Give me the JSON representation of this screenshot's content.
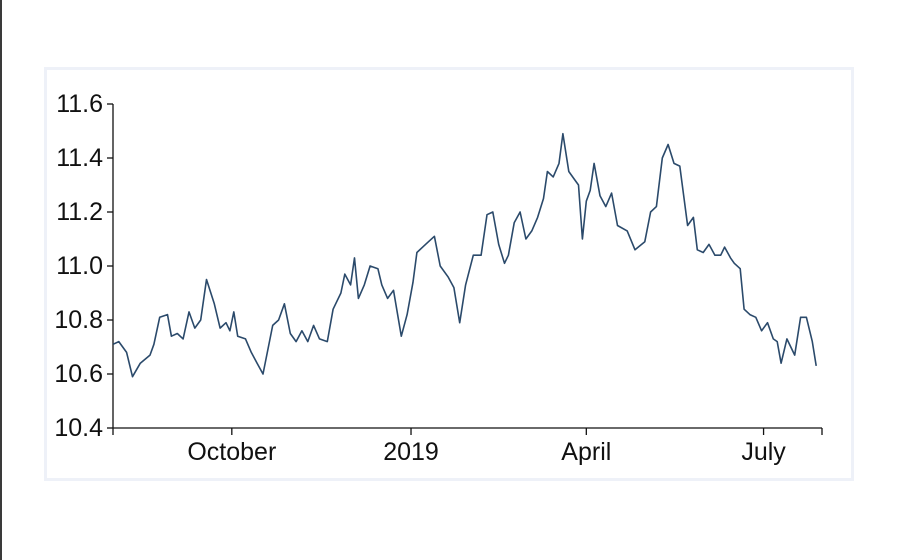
{
  "chart_data": {
    "type": "line",
    "title": "",
    "xlabel": "",
    "ylabel": "",
    "grid": false,
    "legend": "none",
    "x_axis": {
      "kind": "date",
      "range": [
        "2018-08-01",
        "2019-07-31"
      ],
      "ticks": [
        {
          "date": "2018-10-01",
          "label": "October"
        },
        {
          "date": "2019-01-01",
          "label": "2019"
        },
        {
          "date": "2019-04-01",
          "label": "April"
        },
        {
          "date": "2019-07-01",
          "label": "July"
        }
      ]
    },
    "y_axis": {
      "range": [
        10.4,
        11.6
      ],
      "ticks": [
        {
          "value": 10.4,
          "label": "10.4"
        },
        {
          "value": 10.6,
          "label": "10.6"
        },
        {
          "value": 10.8,
          "label": "10.8"
        },
        {
          "value": 11.0,
          "label": "11.0"
        },
        {
          "value": 11.2,
          "label": "11.2"
        },
        {
          "value": 11.4,
          "label": "11.4"
        },
        {
          "value": 11.6,
          "label": "11.6"
        }
      ]
    },
    "series": [
      {
        "color": "#2b4a6b",
        "points": [
          [
            "2018-08-01",
            10.71
          ],
          [
            "2018-08-04",
            10.72
          ],
          [
            "2018-08-08",
            10.68
          ],
          [
            "2018-08-11",
            10.59
          ],
          [
            "2018-08-15",
            10.64
          ],
          [
            "2018-08-20",
            10.67
          ],
          [
            "2018-08-22",
            10.71
          ],
          [
            "2018-08-25",
            10.81
          ],
          [
            "2018-08-29",
            10.82
          ],
          [
            "2018-08-31",
            10.74
          ],
          [
            "2018-09-03",
            10.75
          ],
          [
            "2018-09-06",
            10.73
          ],
          [
            "2018-09-09",
            10.83
          ],
          [
            "2018-09-12",
            10.77
          ],
          [
            "2018-09-15",
            10.8
          ],
          [
            "2018-09-18",
            10.95
          ],
          [
            "2018-09-22",
            10.86
          ],
          [
            "2018-09-25",
            10.77
          ],
          [
            "2018-09-28",
            10.79
          ],
          [
            "2018-09-30",
            10.76
          ],
          [
            "2018-10-02",
            10.83
          ],
          [
            "2018-10-04",
            10.74
          ],
          [
            "2018-10-08",
            10.73
          ],
          [
            "2018-10-11",
            10.68
          ],
          [
            "2018-10-14",
            10.64
          ],
          [
            "2018-10-17",
            10.6
          ],
          [
            "2018-10-22",
            10.78
          ],
          [
            "2018-10-25",
            10.8
          ],
          [
            "2018-10-28",
            10.86
          ],
          [
            "2018-10-31",
            10.75
          ],
          [
            "2018-11-03",
            10.72
          ],
          [
            "2018-11-06",
            10.76
          ],
          [
            "2018-11-09",
            10.72
          ],
          [
            "2018-11-12",
            10.78
          ],
          [
            "2018-11-15",
            10.73
          ],
          [
            "2018-11-19",
            10.72
          ],
          [
            "2018-11-22",
            10.84
          ],
          [
            "2018-11-26",
            10.9
          ],
          [
            "2018-11-28",
            10.97
          ],
          [
            "2018-12-01",
            10.93
          ],
          [
            "2018-12-03",
            11.03
          ],
          [
            "2018-12-05",
            10.88
          ],
          [
            "2018-12-08",
            10.93
          ],
          [
            "2018-12-11",
            11.0
          ],
          [
            "2018-12-15",
            10.99
          ],
          [
            "2018-12-17",
            10.93
          ],
          [
            "2018-12-20",
            10.88
          ],
          [
            "2018-12-23",
            10.91
          ],
          [
            "2018-12-27",
            10.74
          ],
          [
            "2018-12-30",
            10.82
          ],
          [
            "2019-01-02",
            10.94
          ],
          [
            "2019-01-04",
            11.05
          ],
          [
            "2019-01-07",
            11.07
          ],
          [
            "2019-01-10",
            11.09
          ],
          [
            "2019-01-13",
            11.11
          ],
          [
            "2019-01-16",
            11.0
          ],
          [
            "2019-01-20",
            10.96
          ],
          [
            "2019-01-23",
            10.92
          ],
          [
            "2019-01-26",
            10.79
          ],
          [
            "2019-01-29",
            10.93
          ],
          [
            "2019-02-02",
            11.04
          ],
          [
            "2019-02-06",
            11.04
          ],
          [
            "2019-02-09",
            11.19
          ],
          [
            "2019-02-12",
            11.2
          ],
          [
            "2019-02-15",
            11.08
          ],
          [
            "2019-02-18",
            11.01
          ],
          [
            "2019-02-20",
            11.04
          ],
          [
            "2019-02-23",
            11.16
          ],
          [
            "2019-02-26",
            11.2
          ],
          [
            "2019-03-01",
            11.1
          ],
          [
            "2019-03-04",
            11.13
          ],
          [
            "2019-03-07",
            11.18
          ],
          [
            "2019-03-10",
            11.25
          ],
          [
            "2019-03-12",
            11.35
          ],
          [
            "2019-03-15",
            11.33
          ],
          [
            "2019-03-18",
            11.38
          ],
          [
            "2019-03-20",
            11.49
          ],
          [
            "2019-03-23",
            11.35
          ],
          [
            "2019-03-26",
            11.32
          ],
          [
            "2019-03-28",
            11.3
          ],
          [
            "2019-03-30",
            11.1
          ],
          [
            "2019-04-01",
            11.24
          ],
          [
            "2019-04-03",
            11.28
          ],
          [
            "2019-04-05",
            11.38
          ],
          [
            "2019-04-08",
            11.26
          ],
          [
            "2019-04-11",
            11.22
          ],
          [
            "2019-04-14",
            11.27
          ],
          [
            "2019-04-17",
            11.15
          ],
          [
            "2019-04-22",
            11.13
          ],
          [
            "2019-04-26",
            11.06
          ],
          [
            "2019-05-01",
            11.09
          ],
          [
            "2019-05-04",
            11.2
          ],
          [
            "2019-05-07",
            11.22
          ],
          [
            "2019-05-10",
            11.4
          ],
          [
            "2019-05-13",
            11.45
          ],
          [
            "2019-05-16",
            11.38
          ],
          [
            "2019-05-19",
            11.37
          ],
          [
            "2019-05-21",
            11.26
          ],
          [
            "2019-05-23",
            11.15
          ],
          [
            "2019-05-26",
            11.18
          ],
          [
            "2019-05-28",
            11.06
          ],
          [
            "2019-05-31",
            11.05
          ],
          [
            "2019-06-03",
            11.08
          ],
          [
            "2019-06-06",
            11.04
          ],
          [
            "2019-06-09",
            11.04
          ],
          [
            "2019-06-11",
            11.07
          ],
          [
            "2019-06-14",
            11.03
          ],
          [
            "2019-06-16",
            11.01
          ],
          [
            "2019-06-19",
            10.99
          ],
          [
            "2019-06-21",
            10.84
          ],
          [
            "2019-06-24",
            10.82
          ],
          [
            "2019-06-27",
            10.81
          ],
          [
            "2019-06-30",
            10.76
          ],
          [
            "2019-07-03",
            10.79
          ],
          [
            "2019-07-06",
            10.73
          ],
          [
            "2019-07-08",
            10.72
          ],
          [
            "2019-07-10",
            10.64
          ],
          [
            "2019-07-13",
            10.73
          ],
          [
            "2019-07-17",
            10.67
          ],
          [
            "2019-07-20",
            10.81
          ],
          [
            "2019-07-23",
            10.81
          ],
          [
            "2019-07-26",
            10.72
          ],
          [
            "2019-07-28",
            10.63
          ]
        ]
      }
    ]
  }
}
